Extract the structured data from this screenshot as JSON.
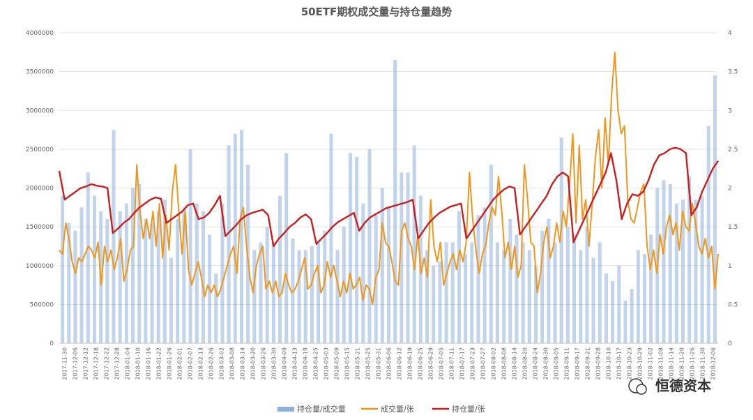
{
  "chart_data": {
    "type": "bar+line",
    "title": "50ETF期权成交量与持仓量趋势",
    "y_left": {
      "min": 0,
      "max": 4000000,
      "ticks": [
        "0",
        "500000",
        "1000000",
        "1500000",
        "2000000",
        "2500000",
        "3000000",
        "3500000",
        "4000000"
      ]
    },
    "y_right": {
      "min": 0,
      "max": 4,
      "ticks": [
        "0",
        "0.5",
        "1",
        "1.5",
        "2",
        "2.5",
        "3",
        "3.5",
        "4"
      ]
    },
    "x_ticks": [
      "2017-11-30",
      "2017-12-06",
      "2017-12-12",
      "2017-12-18",
      "2017-12-22",
      "2017-12-28",
      "2018-01-04",
      "2018-01-10",
      "2018-01-16",
      "2018-01-22",
      "2018-01-26",
      "2018-02-01",
      "2018-02-07",
      "2018-02-13",
      "2018-02-26",
      "2018-03-02",
      "2018-03-08",
      "2018-03-14",
      "2018-03-20",
      "2018-03-26",
      "2018-03-30",
      "2018-04-09",
      "2018-04-13",
      "2018-04-19",
      "2018-04-25",
      "2018-05-03",
      "2018-05-09",
      "2018-05-15",
      "2018-05-21",
      "2018-05-25",
      "2018-05-31",
      "2018-06-06",
      "2018-06-12",
      "2018-06-19",
      "2018-06-25",
      "2018-06-29",
      "2018-07-05",
      "2018-07-11",
      "2018-07-17",
      "2018-07-23",
      "2018-07-27",
      "2018-08-02",
      "2018-08-08",
      "2018-08-14",
      "2018-08-20",
      "2018-08-24",
      "2018-08-30",
      "2018-09-05",
      "2018-09-11",
      "2018-09-17",
      "2018-09-21",
      "2018-09-28",
      "2018-10-10",
      "2018-10-17",
      "2018-10-23",
      "2018-10-29",
      "2018-11-02",
      "2018-11-08",
      "2018-11-14",
      "2018-11-20",
      "2018-11-26",
      "2018-11-30",
      "2018-12-06"
    ],
    "series": [
      {
        "name": "持仓量/成交量",
        "type": "bar",
        "axis": "right",
        "color": "#8fb0dc",
        "values": [
          1.9,
          1.55,
          1.45,
          1.75,
          2.2,
          1.9,
          1.7,
          1.6,
          2.75,
          1.7,
          1.8,
          2.0,
          2.05,
          1.6,
          1.55,
          1.7,
          1.85,
          1.1,
          1.6,
          1.75,
          2.5,
          1.8,
          1.7,
          1.4,
          0.9,
          1.8,
          2.55,
          2.7,
          2.75,
          2.3,
          1.2,
          1.3,
          1.5,
          1.3,
          1.9,
          2.45,
          1.35,
          1.2,
          1.2,
          1.25,
          1.3,
          1.45,
          2.7,
          1.2,
          1.5,
          2.45,
          2.4,
          1.8,
          2.5,
          1.65,
          2.0,
          1.75,
          3.65,
          2.2,
          2.2,
          2.55,
          1.9,
          1.2,
          1.0,
          1.05,
          1.3,
          1.3,
          1.7,
          1.15,
          1.3,
          1.65,
          1.75,
          2.3,
          1.3,
          1.2,
          1.6,
          1.4,
          1.3,
          1.2,
          1.0,
          1.45,
          1.6,
          1.3,
          2.65,
          1.5,
          1.4,
          1.2,
          1.5,
          1.1,
          1.3,
          0.9,
          0.8,
          1.0,
          0.55,
          0.7,
          1.2,
          1.15,
          1.4,
          2.0,
          2.1,
          2.05,
          1.8,
          1.85,
          2.15,
          1.85,
          1.9,
          2.8,
          3.45
        ]
      },
      {
        "name": "成交量/张",
        "type": "line",
        "axis": "left",
        "color": "#f0961e",
        "values": [
          1200000,
          1150000,
          1550000,
          1350000,
          1050000,
          900000,
          1100000,
          1050000,
          1150000,
          1250000,
          1200000,
          1100000,
          1300000,
          750000,
          1250000,
          1050000,
          1200000,
          950000,
          1100000,
          1350000,
          800000,
          950000,
          1200000,
          1250000,
          2300000,
          1700000,
          1350000,
          1600000,
          1350000,
          1700000,
          1250000,
          1800000,
          1100000,
          1650000,
          1200000,
          1950000,
          2300000,
          1700000,
          1150000,
          1700000,
          950000,
          750000,
          900000,
          1050000,
          850000,
          600000,
          750000,
          650000,
          750000,
          600000,
          700000,
          850000,
          1000000,
          1150000,
          1250000,
          900000,
          1600000,
          1750000,
          1250000,
          850000,
          650000,
          1000000,
          1150000,
          1250000,
          700000,
          800000,
          650000,
          800000,
          600000,
          650000,
          900000,
          750000,
          650000,
          700000,
          800000,
          950000,
          1100000,
          700000,
          750000,
          900000,
          1000000,
          650000,
          750000,
          1050000,
          850000,
          1000000,
          800000,
          600000,
          800000,
          650000,
          900000,
          700000,
          750000,
          850000,
          550000,
          750000,
          700000,
          500000,
          850000,
          950000,
          1550000,
          1300000,
          1250000,
          1050000,
          800000,
          750000,
          1450000,
          1550000,
          1350000,
          1250000,
          950000,
          1400000,
          900000,
          1100000,
          850000,
          1850000,
          1250000,
          1050000,
          1300000,
          750000,
          900000,
          1050000,
          1150000,
          950000,
          1200000,
          1050000,
          1300000,
          2200000,
          1600000,
          1200000,
          900000,
          1150000,
          1250000,
          1550000,
          1750000,
          1650000,
          2150000,
          1700000,
          1100000,
          1300000,
          950000,
          1250000,
          850000,
          1000000,
          2300000,
          1850000,
          1300000,
          1250000,
          650000,
          900000,
          1300000,
          1500000,
          1100000,
          1250000,
          1550000,
          1300000,
          1700000,
          1500000,
          2050000,
          2700000,
          1550000,
          2550000,
          1600000,
          1850000,
          1250000,
          1800000,
          2400000,
          2750000,
          2000000,
          2900000,
          2300000,
          3200000,
          3750000,
          3000000,
          2700000,
          2800000,
          1850000,
          1600000,
          1550000,
          1750000,
          1950000,
          2050000,
          1250000,
          950000,
          1200000,
          900000,
          1400000,
          1150000,
          1500000,
          1650000,
          1400000,
          1550000,
          1200000,
          1700000,
          1500000,
          1450000,
          1800000,
          1550000,
          1250000,
          1150000,
          1350000,
          1100000,
          1250000,
          700000,
          1150000
        ]
      },
      {
        "name": "持仓量/张",
        "type": "line",
        "axis": "right",
        "color": "#c81e1e",
        "values": [
          2.22,
          1.85,
          1.9,
          1.95,
          2.0,
          2.02,
          2.05,
          2.03,
          2.02,
          2.0,
          1.42,
          1.48,
          1.55,
          1.6,
          1.68,
          1.75,
          1.8,
          1.85,
          1.88,
          1.86,
          1.55,
          1.6,
          1.65,
          1.7,
          1.78,
          1.8,
          1.6,
          1.62,
          1.68,
          1.78,
          1.9,
          1.38,
          1.45,
          1.52,
          1.6,
          1.65,
          1.68,
          1.7,
          1.72,
          1.65,
          1.25,
          1.35,
          1.42,
          1.5,
          1.55,
          1.62,
          1.66,
          1.6,
          1.28,
          1.35,
          1.42,
          1.5,
          1.56,
          1.6,
          1.64,
          1.68,
          1.45,
          1.55,
          1.62,
          1.66,
          1.7,
          1.74,
          1.76,
          1.78,
          1.8,
          1.82,
          1.85,
          1.35,
          1.45,
          1.55,
          1.62,
          1.68,
          1.72,
          1.76,
          1.78,
          1.8,
          1.35,
          1.45,
          1.55,
          1.65,
          1.75,
          1.85,
          1.92,
          1.98,
          2.02,
          2.0,
          1.4,
          1.5,
          1.6,
          1.7,
          1.8,
          1.9,
          2.05,
          2.15,
          2.2,
          2.15,
          1.3,
          1.45,
          1.6,
          1.75,
          1.9,
          2.05,
          2.2,
          2.45,
          2.1,
          1.6,
          1.8,
          1.92,
          1.9,
          1.95,
          2.1,
          2.3,
          2.42,
          2.45,
          2.5,
          2.52,
          2.5,
          2.45,
          1.65,
          1.75,
          1.95,
          2.1,
          2.25,
          2.35
        ]
      }
    ],
    "legend_position": "bottom-center",
    "grid": true
  },
  "watermark": "恒德资本"
}
